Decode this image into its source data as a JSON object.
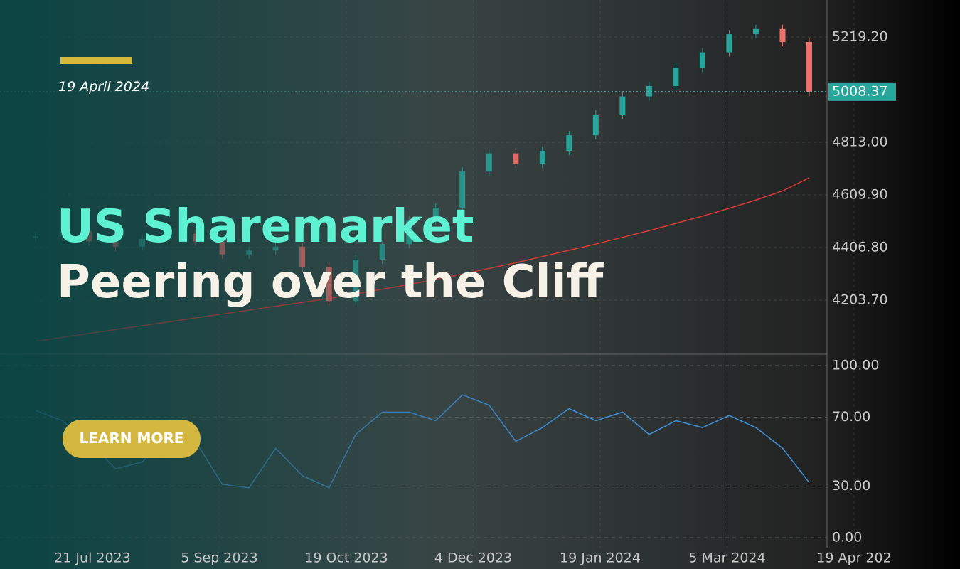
{
  "header": {
    "date": "19 April 2024",
    "title_line1": "US Sharemarket",
    "title_line2": "Peering over the Cliff",
    "button": "LEARN MORE"
  },
  "chart_data": [
    {
      "type": "candlestick",
      "values": [
        4450,
        4470,
        4430,
        4410,
        4440,
        4460,
        4430,
        4380,
        4395,
        4410,
        4330,
        4200,
        4360,
        4420,
        4510,
        4560,
        4700,
        4770,
        4730,
        4780,
        4840,
        4920,
        4990,
        5030,
        5100,
        5160,
        5230,
        5250,
        5200,
        5008.37
      ],
      "overlay": [
        4045,
        4060,
        4075,
        4090,
        4105,
        4120,
        4135,
        4150,
        4165,
        4180,
        4195,
        4210,
        4228,
        4246,
        4264,
        4284,
        4304,
        4326,
        4348,
        4372,
        4396,
        4420,
        4446,
        4472,
        4500,
        4528,
        4558,
        4590,
        4625,
        4676
      ],
      "color_up": "#26a69a",
      "color_down": "#ef6f6c",
      "overlay_color": "#d83a3a",
      "ylim": [
        3995,
        5362
      ],
      "yticks": [
        {
          "value": 5219.2,
          "label": "5219.20"
        },
        {
          "value": 4813,
          "label": "4813.00"
        },
        {
          "value": 4609.9,
          "label": "4609.90"
        },
        {
          "value": 4406.8,
          "label": "4406.80"
        },
        {
          "value": 4203.7,
          "label": "4203.70"
        }
      ]
    },
    {
      "type": "line",
      "values": [
        74,
        68,
        56,
        40,
        44,
        60,
        56,
        31,
        29,
        52,
        36,
        29,
        60,
        73,
        73,
        68,
        83,
        77,
        56,
        64,
        75,
        68,
        73,
        60,
        68,
        64,
        71,
        64,
        52,
        32
      ],
      "color": "#3f8fd6",
      "ylim": [
        -5.8,
        105.8
      ],
      "yticks": [
        {
          "value": 100,
          "label": "100.00"
        },
        {
          "value": 70,
          "label": "70.00"
        },
        {
          "value": 30,
          "label": "30.00"
        },
        {
          "value": 0,
          "label": "0.00"
        }
      ],
      "x_labels": [
        "21 Jul 2023",
        "5 Sep 2023",
        "19 Oct 2023",
        "4 Dec 2023",
        "19 Jan 2024",
        "5 Mar 2024",
        "19 Apr 202"
      ]
    }
  ]
}
